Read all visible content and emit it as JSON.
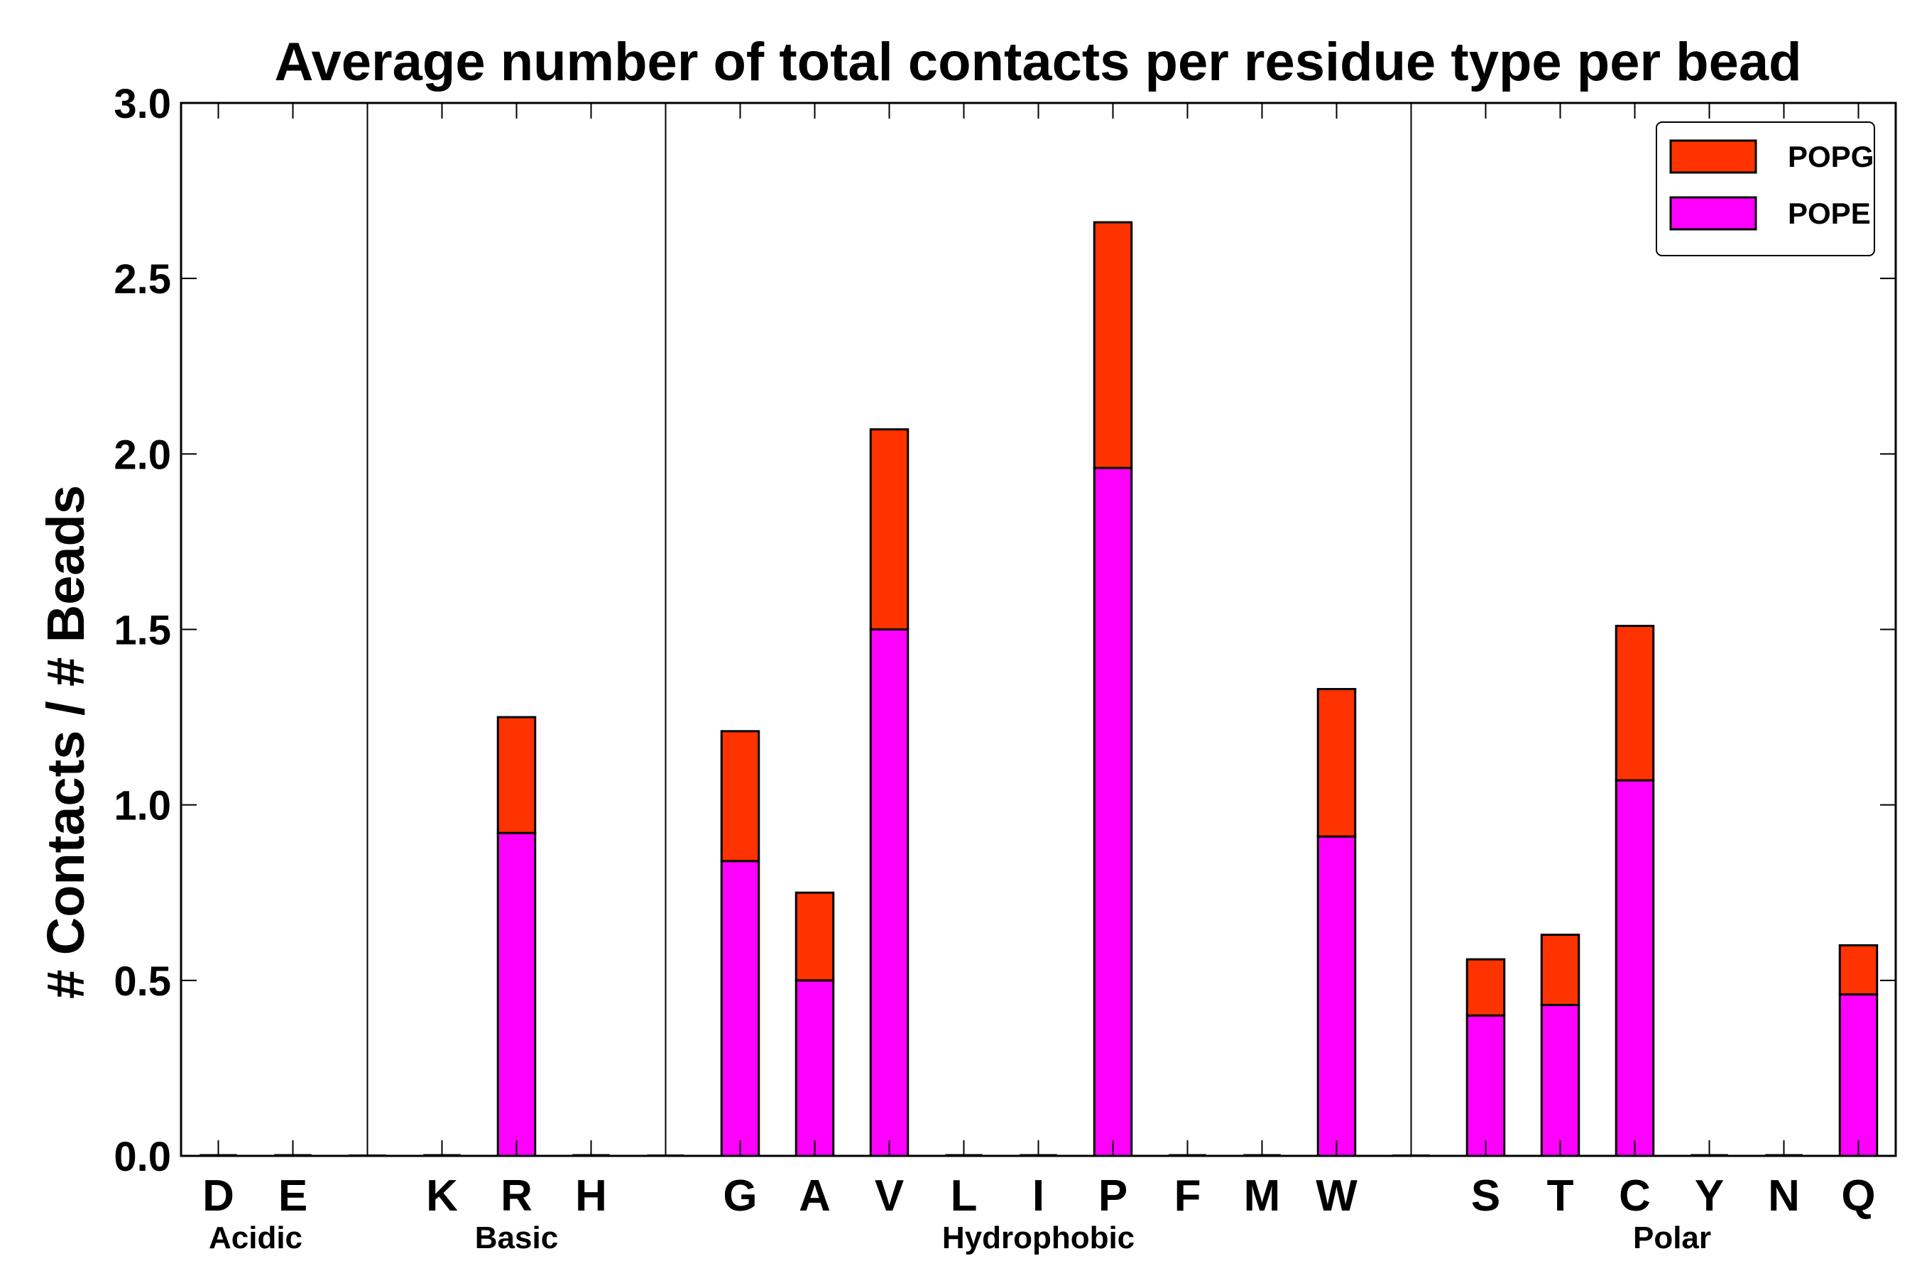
{
  "chart_data": {
    "type": "bar",
    "stacked": true,
    "title": "Average number of total contacts per residue type per bead",
    "xlabel": "",
    "ylabel": "# Contacts / # Beads",
    "ylim": [
      0,
      3.0
    ],
    "yticks": [
      "0.0",
      "0.5",
      "1.0",
      "1.5",
      "2.0",
      "2.5",
      "3.0"
    ],
    "legend_position": "top-right",
    "slots": [
      "D",
      "E",
      "",
      "K",
      "R",
      "H",
      "",
      "G",
      "A",
      "V",
      "L",
      "I",
      "P",
      "F",
      "M",
      "W",
      "",
      "S",
      "T",
      "C",
      "Y",
      "N",
      "Q"
    ],
    "categories": [
      "D",
      "E",
      "K",
      "R",
      "H",
      "G",
      "A",
      "V",
      "L",
      "I",
      "P",
      "F",
      "M",
      "W",
      "S",
      "T",
      "C",
      "Y",
      "N",
      "Q"
    ],
    "groups": [
      {
        "label": "Acidic",
        "members": [
          "D",
          "E"
        ]
      },
      {
        "label": "Basic",
        "members": [
          "K",
          "R",
          "H"
        ]
      },
      {
        "label": "Hydrophobic",
        "members": [
          "G",
          "A",
          "V",
          "L",
          "I",
          "P",
          "F",
          "M",
          "W"
        ]
      },
      {
        "label": "Polar",
        "members": [
          "S",
          "T",
          "C",
          "Y",
          "N",
          "Q"
        ]
      }
    ],
    "series": [
      {
        "name": "POPE",
        "color": "#ff00ff",
        "values": [
          0,
          0,
          0,
          0.92,
          0,
          0.84,
          0.5,
          1.5,
          0,
          0,
          1.96,
          0,
          0,
          0.91,
          0.4,
          0.43,
          1.07,
          0,
          0,
          0.46
        ]
      },
      {
        "name": "POPG",
        "color": "#ff3300",
        "values": [
          0,
          0,
          0,
          0.33,
          0,
          0.37,
          0.25,
          0.57,
          0,
          0,
          0.7,
          0,
          0,
          0.42,
          0.16,
          0.2,
          0.44,
          0,
          0,
          0.14
        ]
      }
    ],
    "legend": [
      {
        "name": "POPG",
        "color": "#ff3300"
      },
      {
        "name": "POPE",
        "color": "#ff00ff"
      }
    ]
  }
}
